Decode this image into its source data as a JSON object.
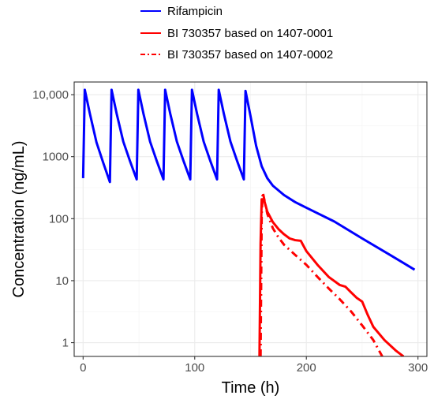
{
  "chart_data": {
    "type": "line",
    "xlabel": "Time (h)",
    "ylabel": "Concentration (ng/mL)",
    "x_scale": "linear",
    "y_scale": "log",
    "xlim": [
      -8,
      308
    ],
    "ylim": [
      0.6,
      16000
    ],
    "x_ticks": [
      0,
      100,
      200,
      300
    ],
    "x_tick_labels": [
      "0",
      "100",
      "200",
      "300"
    ],
    "y_ticks": [
      1,
      10,
      100,
      1000,
      10000
    ],
    "y_tick_labels": [
      "1",
      "10",
      "100",
      "1000",
      "10,000"
    ],
    "grid": true,
    "legend_position": "top",
    "series": [
      {
        "name": "Rifampicin",
        "color": "#0000ff",
        "line_style": "solid",
        "points": [
          [
            0,
            450
          ],
          [
            1.5,
            12000
          ],
          [
            6,
            5000
          ],
          [
            12,
            1700
          ],
          [
            18,
            800
          ],
          [
            24,
            390
          ],
          [
            25.5,
            12000
          ],
          [
            30,
            5000
          ],
          [
            36,
            1750
          ],
          [
            42,
            850
          ],
          [
            48,
            430
          ],
          [
            49.5,
            12000
          ],
          [
            54,
            5000
          ],
          [
            60,
            1750
          ],
          [
            66,
            850
          ],
          [
            72,
            430
          ],
          [
            73.5,
            12000
          ],
          [
            78,
            5000
          ],
          [
            84,
            1750
          ],
          [
            90,
            850
          ],
          [
            96,
            430
          ],
          [
            97.5,
            12000
          ],
          [
            102,
            5000
          ],
          [
            108,
            1750
          ],
          [
            114,
            850
          ],
          [
            120,
            430
          ],
          [
            121.5,
            12000
          ],
          [
            126,
            5000
          ],
          [
            132,
            1750
          ],
          [
            138,
            850
          ],
          [
            144,
            430
          ],
          [
            145.5,
            11500
          ],
          [
            150,
            4500
          ],
          [
            155,
            1500
          ],
          [
            160,
            700
          ],
          [
            165,
            450
          ],
          [
            170,
            340
          ],
          [
            180,
            240
          ],
          [
            190,
            185
          ],
          [
            200,
            150
          ],
          [
            225,
            90
          ],
          [
            250,
            48
          ],
          [
            275,
            26
          ],
          [
            297,
            15
          ]
        ]
      },
      {
        "name": "BI 730357 based on 1407-0001",
        "color": "#ff0000",
        "line_style": "solid",
        "points": [
          [
            158,
            0.6
          ],
          [
            159,
            40
          ],
          [
            160,
            205
          ],
          [
            162,
            205
          ],
          [
            165,
            130
          ],
          [
            170,
            88
          ],
          [
            175,
            68
          ],
          [
            180,
            56
          ],
          [
            185,
            48
          ],
          [
            190,
            45
          ],
          [
            195,
            44
          ],
          [
            200,
            30
          ],
          [
            210,
            18
          ],
          [
            220,
            11.5
          ],
          [
            230,
            8.5
          ],
          [
            235,
            8
          ],
          [
            240,
            6.5
          ],
          [
            245,
            5.3
          ],
          [
            250,
            4.6
          ],
          [
            255,
            2.8
          ],
          [
            260,
            1.8
          ],
          [
            270,
            1.1
          ],
          [
            280,
            0.75
          ],
          [
            287,
            0.6
          ]
        ]
      },
      {
        "name": "BI 730357 based on 1407-0002",
        "color": "#ff0000",
        "line_style": "dashdot",
        "points": [
          [
            159,
            0.6
          ],
          [
            160,
            120
          ],
          [
            161,
            265
          ],
          [
            163,
            180
          ],
          [
            165,
            120
          ],
          [
            170,
            70
          ],
          [
            175,
            50
          ],
          [
            180,
            38
          ],
          [
            190,
            26
          ],
          [
            200,
            18
          ],
          [
            210,
            11.5
          ],
          [
            220,
            7.5
          ],
          [
            230,
            5
          ],
          [
            240,
            3.2
          ],
          [
            250,
            1.9
          ],
          [
            260,
            1.1
          ],
          [
            268,
            0.6
          ]
        ]
      }
    ]
  }
}
